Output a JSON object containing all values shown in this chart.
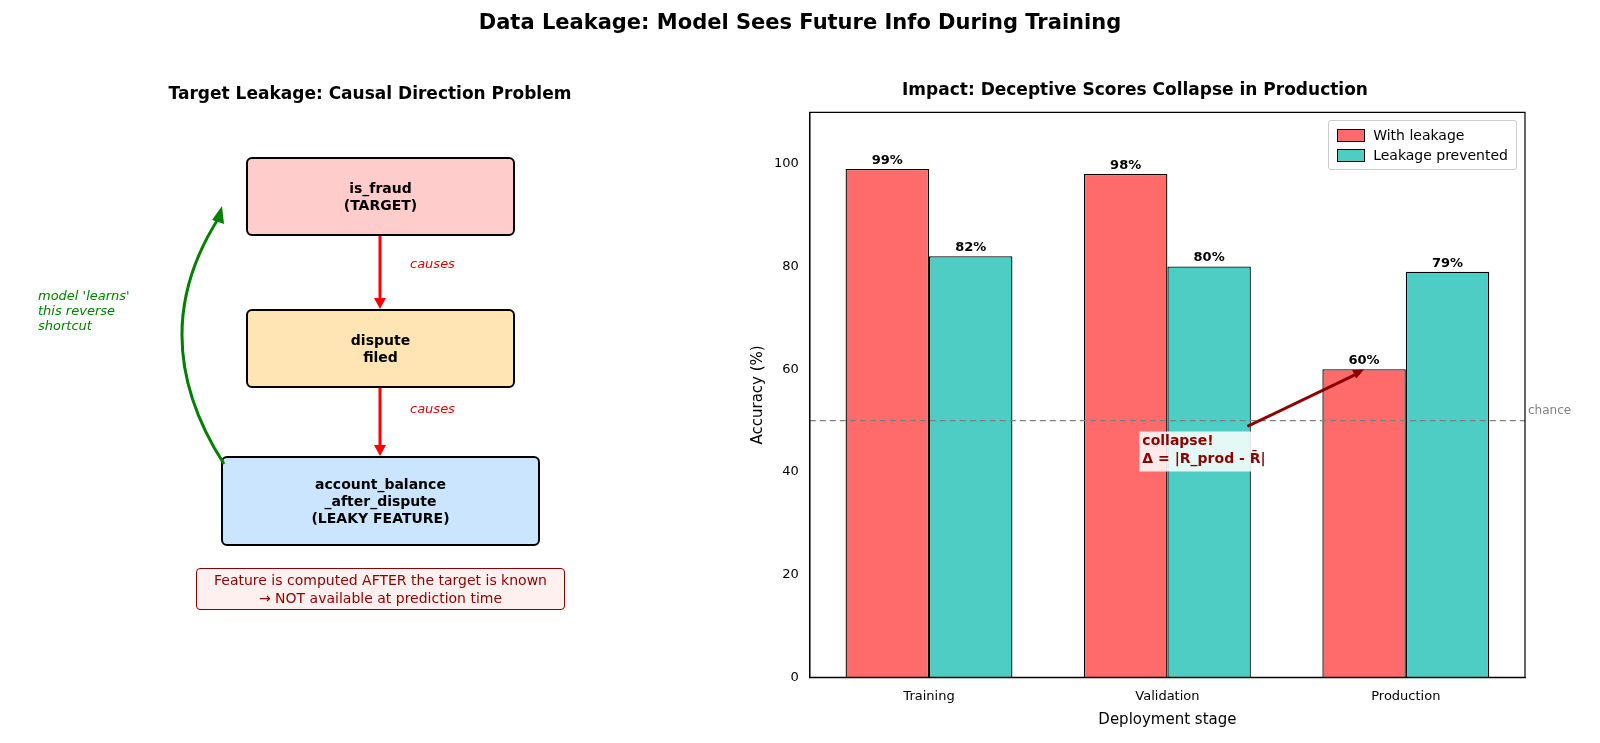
{
  "chart_data": [
    {
      "type": "other",
      "title": "Data Leakage: Model Sees Future Info During Training"
    },
    {
      "type": "other",
      "title": "Target Leakage: Causal Direction Problem",
      "annotations": [
        "is_fraud\n(TARGET)",
        "dispute\nfiled",
        "account_balance\n_after_dispute\n(LEAKY FEATURE)",
        "causes",
        "causes",
        "model 'learns'\nthis reverse\nshortcut",
        "Feature is computed AFTER the target is known\n→ NOT available at prediction time"
      ]
    },
    {
      "type": "bar",
      "title": "Impact: Deceptive Scores Collapse in Production",
      "xlabel": "Deployment stage",
      "ylabel": "Accuracy (%)",
      "categories": [
        "Training",
        "Validation",
        "Production"
      ],
      "series": [
        {
          "name": "With leakage",
          "color": "#ff6b6b",
          "values": [
            99,
            98,
            60
          ],
          "value_labels": [
            "99%",
            "98%",
            "60%"
          ]
        },
        {
          "name": "Leakage prevented",
          "color": "#4ecdc4",
          "values": [
            82,
            80,
            79
          ],
          "value_labels": [
            "82%",
            "80%",
            "79%"
          ]
        }
      ],
      "ylim": [
        0,
        110
      ],
      "yticks": [
        0,
        20,
        40,
        60,
        80,
        100
      ],
      "ref_lines": [
        {
          "axis": "y",
          "value": 50,
          "label": "chance",
          "color": "#808080",
          "line_style": "dashed"
        }
      ],
      "annotations": [
        "collapse!\nΔ = |R_prod - R̄|"
      ],
      "legend": "top right",
      "grid": false
    }
  ]
}
